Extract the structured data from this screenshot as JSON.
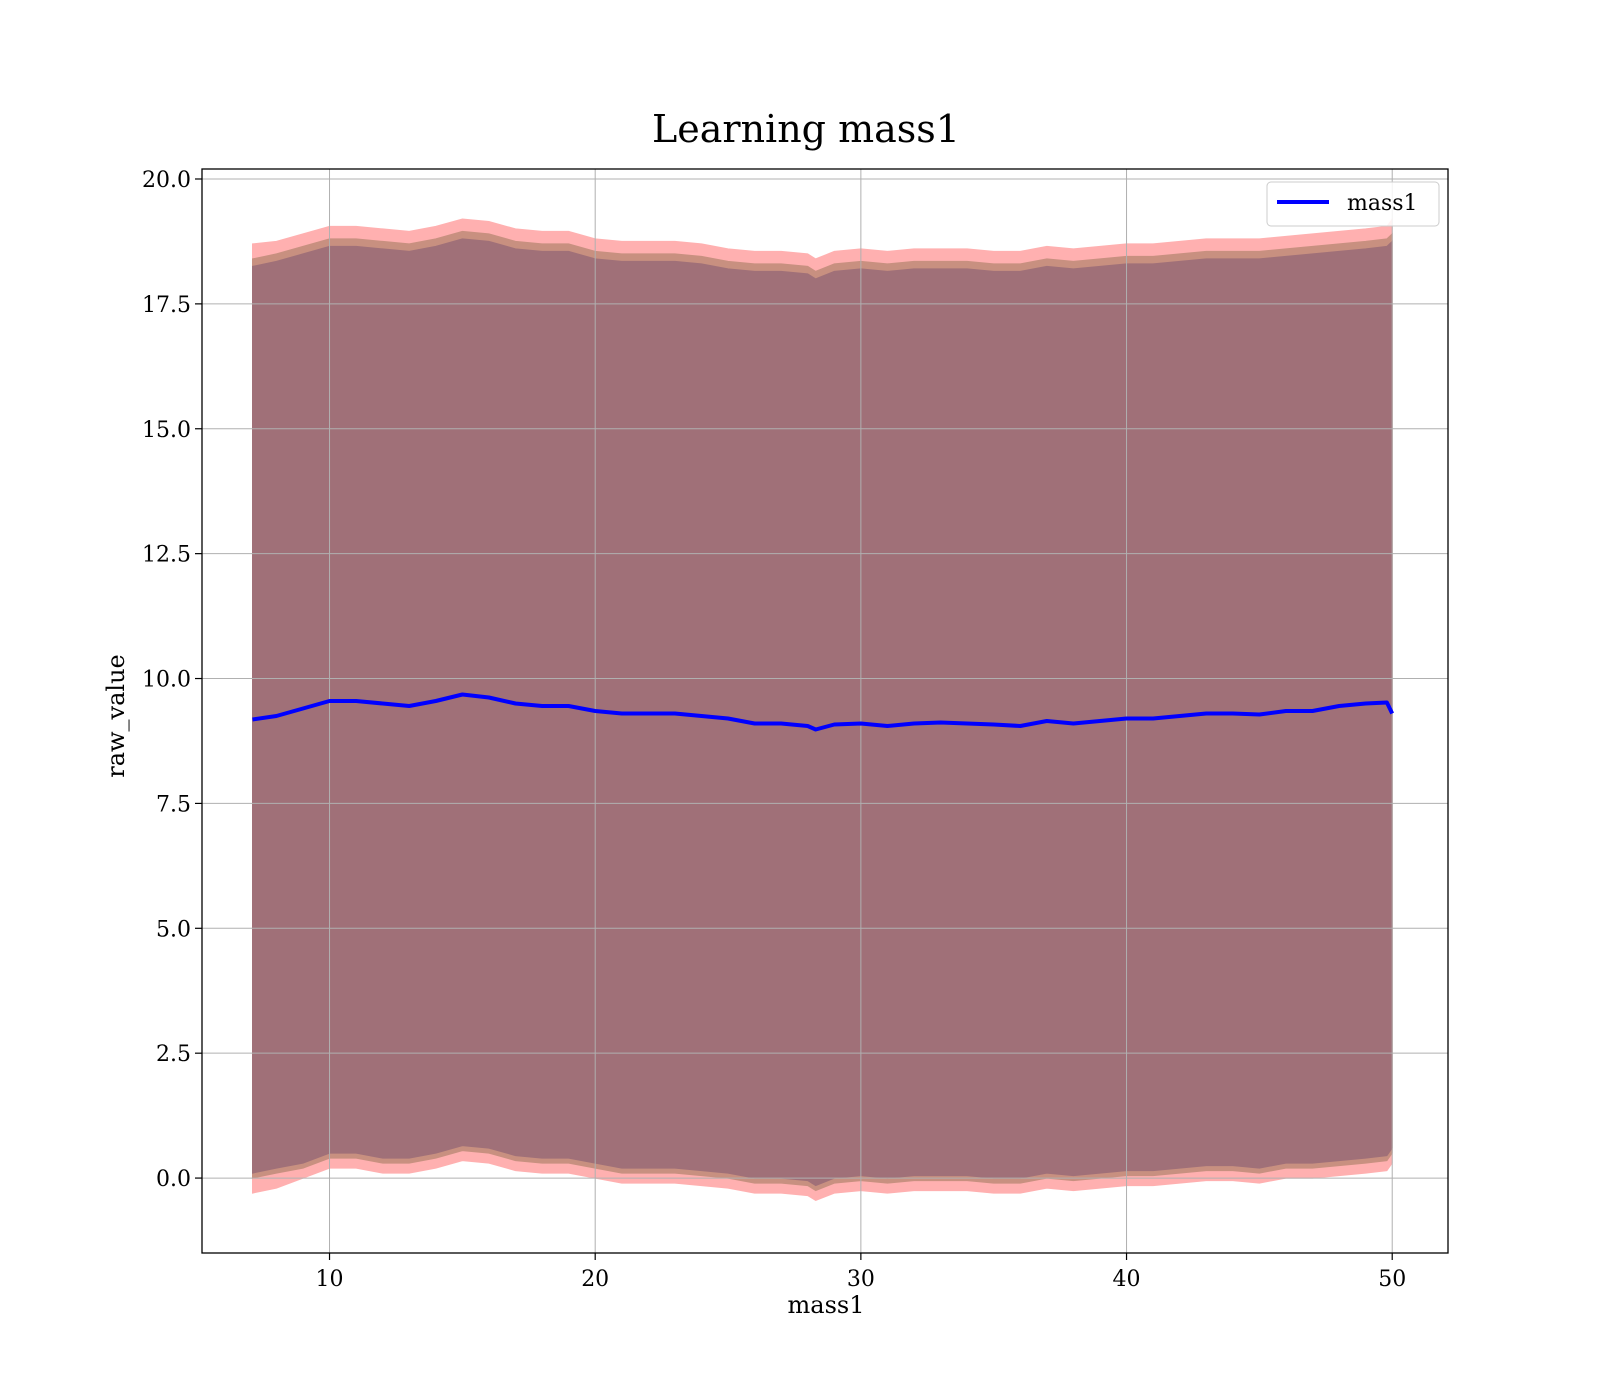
{
  "chart_data": {
    "type": "line",
    "title": "Learning mass1",
    "xlabel": "mass1",
    "ylabel": "raw_value",
    "xlim": [
      5.2,
      52.1
    ],
    "ylim": [
      -1.5,
      20.2
    ],
    "xticks": [
      10,
      20,
      30,
      40,
      50
    ],
    "yticks": [
      0.0,
      2.5,
      5.0,
      7.5,
      10.0,
      12.5,
      15.0,
      17.5,
      20.0
    ],
    "xtick_labels": [
      "10",
      "20",
      "30",
      "40",
      "50"
    ],
    "ytick_labels": [
      "0.0",
      "2.5",
      "5.0",
      "7.5",
      "10.0",
      "12.5",
      "15.0",
      "17.5",
      "20.0"
    ],
    "grid": true,
    "legend": {
      "position": "top-right",
      "entries": [
        "mass1"
      ]
    },
    "colors": {
      "line": "#0000ff",
      "outer_band": "#ffb0b0",
      "middle_band": "#c89080",
      "inner_band": "#a07078",
      "grid": "#b0b0b0"
    },
    "x": [
      7.1,
      8,
      9,
      10,
      11,
      12,
      13,
      14,
      15,
      16,
      17,
      18,
      19,
      20,
      21,
      22,
      23,
      24,
      25,
      26,
      27,
      28,
      28.3,
      29,
      30,
      31,
      32,
      33,
      34,
      35,
      36,
      37,
      38,
      39,
      40,
      41,
      42,
      43,
      44,
      45,
      46,
      47,
      48,
      49,
      49.8,
      50
    ],
    "series": [
      {
        "name": "mass1",
        "values": [
          9.18,
          9.25,
          9.4,
          9.55,
          9.55,
          9.5,
          9.45,
          9.55,
          9.68,
          9.62,
          9.5,
          9.45,
          9.45,
          9.35,
          9.3,
          9.3,
          9.3,
          9.25,
          9.2,
          9.1,
          9.1,
          9.05,
          8.98,
          9.08,
          9.1,
          9.05,
          9.1,
          9.12,
          9.1,
          9.08,
          9.05,
          9.15,
          9.1,
          9.15,
          9.2,
          9.2,
          9.25,
          9.3,
          9.3,
          9.28,
          9.35,
          9.35,
          9.45,
          9.5,
          9.52,
          9.3
        ]
      }
    ],
    "bands": [
      {
        "lower": [
          -0.3,
          -0.2,
          0.0,
          0.2,
          0.2,
          0.1,
          0.1,
          0.2,
          0.35,
          0.3,
          0.15,
          0.1,
          0.1,
          0.0,
          -0.1,
          -0.1,
          -0.1,
          -0.15,
          -0.2,
          -0.3,
          -0.3,
          -0.35,
          -0.45,
          -0.3,
          -0.25,
          -0.3,
          -0.25,
          -0.25,
          -0.25,
          -0.3,
          -0.3,
          -0.2,
          -0.25,
          -0.2,
          -0.15,
          -0.15,
          -0.1,
          -0.05,
          -0.05,
          -0.1,
          0.0,
          0.0,
          0.05,
          0.1,
          0.15,
          0.3
        ],
        "upper": [
          18.7,
          18.75,
          18.9,
          19.05,
          19.05,
          19.0,
          18.95,
          19.05,
          19.2,
          19.15,
          19.0,
          18.95,
          18.95,
          18.8,
          18.75,
          18.75,
          18.75,
          18.7,
          18.6,
          18.55,
          18.55,
          18.5,
          18.4,
          18.55,
          18.6,
          18.55,
          18.6,
          18.6,
          18.6,
          18.55,
          18.55,
          18.65,
          18.6,
          18.65,
          18.7,
          18.7,
          18.75,
          18.8,
          18.8,
          18.8,
          18.85,
          18.9,
          18.95,
          19.0,
          19.05,
          19.2
        ]
      },
      {
        "lower": [
          0.0,
          0.1,
          0.2,
          0.4,
          0.4,
          0.3,
          0.3,
          0.4,
          0.55,
          0.5,
          0.35,
          0.3,
          0.3,
          0.2,
          0.1,
          0.1,
          0.1,
          0.05,
          0.0,
          -0.1,
          -0.1,
          -0.15,
          -0.25,
          -0.1,
          -0.05,
          -0.1,
          -0.05,
          -0.05,
          -0.05,
          -0.1,
          -0.1,
          0.0,
          -0.05,
          0.0,
          0.05,
          0.05,
          0.1,
          0.15,
          0.15,
          0.1,
          0.2,
          0.2,
          0.25,
          0.3,
          0.35,
          0.5
        ],
        "upper": [
          18.4,
          18.5,
          18.65,
          18.8,
          18.8,
          18.75,
          18.7,
          18.8,
          18.95,
          18.9,
          18.75,
          18.7,
          18.7,
          18.55,
          18.5,
          18.5,
          18.5,
          18.45,
          18.35,
          18.3,
          18.3,
          18.25,
          18.15,
          18.3,
          18.35,
          18.3,
          18.35,
          18.35,
          18.35,
          18.3,
          18.3,
          18.4,
          18.35,
          18.4,
          18.45,
          18.45,
          18.5,
          18.55,
          18.55,
          18.55,
          18.6,
          18.65,
          18.7,
          18.75,
          18.8,
          18.9
        ]
      },
      {
        "lower": [
          0.1,
          0.2,
          0.3,
          0.5,
          0.5,
          0.4,
          0.4,
          0.5,
          0.65,
          0.6,
          0.45,
          0.4,
          0.4,
          0.3,
          0.2,
          0.2,
          0.2,
          0.15,
          0.1,
          0.0,
          0.0,
          -0.05,
          -0.15,
          0.0,
          0.05,
          0.0,
          0.05,
          0.05,
          0.05,
          0.0,
          0.0,
          0.1,
          0.05,
          0.1,
          0.15,
          0.15,
          0.2,
          0.25,
          0.25,
          0.2,
          0.3,
          0.3,
          0.35,
          0.4,
          0.45,
          0.6
        ],
        "upper": [
          18.25,
          18.35,
          18.5,
          18.65,
          18.65,
          18.6,
          18.55,
          18.65,
          18.8,
          18.75,
          18.6,
          18.55,
          18.55,
          18.4,
          18.35,
          18.35,
          18.35,
          18.3,
          18.2,
          18.15,
          18.15,
          18.1,
          18.0,
          18.15,
          18.2,
          18.15,
          18.2,
          18.2,
          18.2,
          18.15,
          18.15,
          18.25,
          18.2,
          18.25,
          18.3,
          18.3,
          18.35,
          18.4,
          18.4,
          18.4,
          18.45,
          18.5,
          18.55,
          18.6,
          18.65,
          18.75
        ]
      }
    ]
  }
}
